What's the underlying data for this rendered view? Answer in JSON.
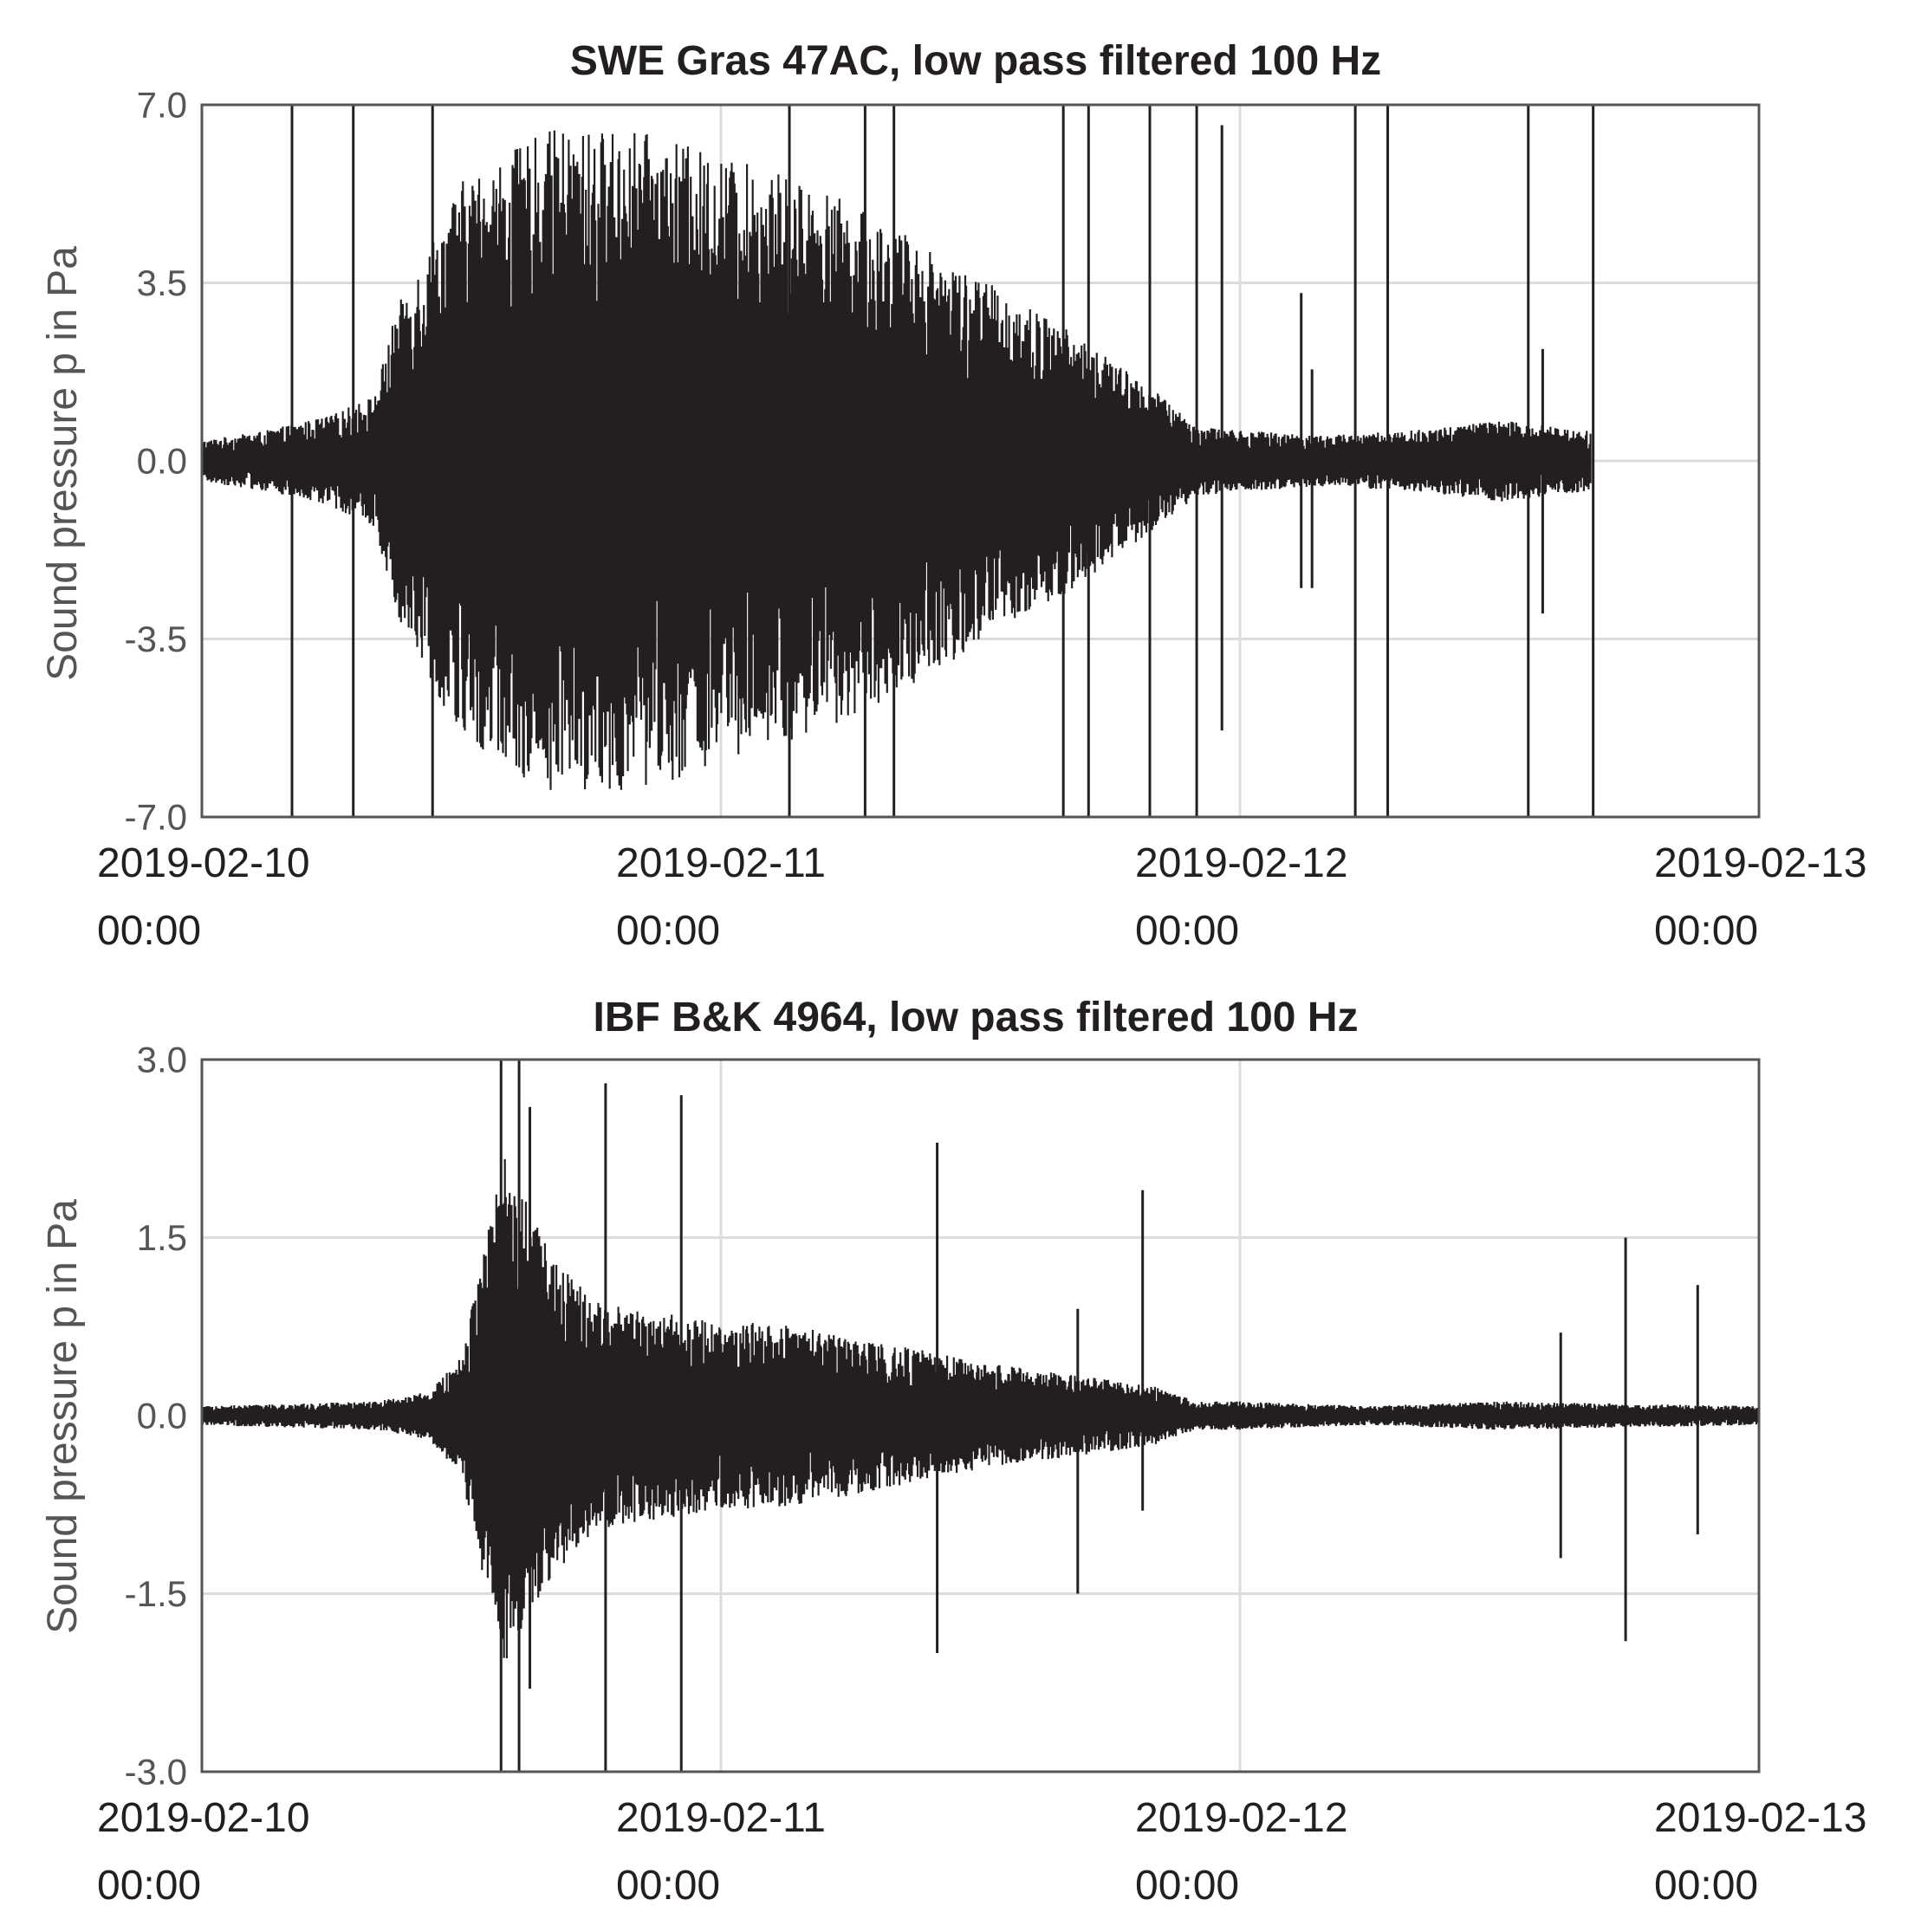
{
  "chart_data": [
    {
      "type": "line",
      "title": "SWE Gras 47AC, low pass filtered 100 Hz",
      "ylabel": "Sound pressure p in Pa",
      "xlabel": "",
      "xlim": [
        "2019-02-10 00:00",
        "2019-02-13 00:00"
      ],
      "ylim": [
        -7.0,
        7.0
      ],
      "yticks": [
        "7.0",
        "3.5",
        "0.0",
        "-3.5",
        "-7.0"
      ],
      "xticks": [
        {
          "date": "2019-02-10",
          "time": "00:00"
        },
        {
          "date": "2019-02-11",
          "time": "00:00"
        },
        {
          "date": "2019-02-12",
          "time": "00:00"
        },
        {
          "date": "2019-02-13",
          "time": "00:00"
        }
      ],
      "grid": true,
      "legend": "none",
      "color": "#231f20",
      "data_end": "2019-02-12 16:15",
      "envelope": {
        "description": "absolute amplitude envelope of the pressure time series",
        "time": [
          "2019-02-10 00:00",
          "2019-02-10 03:00",
          "2019-02-10 06:00",
          "2019-02-10 08:00",
          "2019-02-10 09:00",
          "2019-02-10 12:00",
          "2019-02-10 16:00",
          "2019-02-10 20:00",
          "2019-02-11 00:00",
          "2019-02-11 04:00",
          "2019-02-11 08:00",
          "2019-02-11 12:00",
          "2019-02-11 16:00",
          "2019-02-11 20:00",
          "2019-02-11 22:00",
          "2019-02-12 00:00",
          "2019-02-12 04:00",
          "2019-02-12 08:00",
          "2019-02-12 12:00",
          "2019-02-12 16:15"
        ],
        "amplitude": [
          0.4,
          0.6,
          0.9,
          1.3,
          3.0,
          5.5,
          6.5,
          6.5,
          6.0,
          5.5,
          4.6,
          3.6,
          2.6,
          1.4,
          0.7,
          0.6,
          0.5,
          0.6,
          0.8,
          0.6
        ]
      },
      "spikes": [
        {
          "time": "2019-02-10 04:10",
          "min": -7.0,
          "max": 7.0
        },
        {
          "time": "2019-02-10 07:00",
          "min": -7.0,
          "max": 7.0
        },
        {
          "time": "2019-02-10 10:40",
          "min": -7.0,
          "max": 7.0
        },
        {
          "time": "2019-02-11 03:10",
          "min": -7.0,
          "max": 7.0
        },
        {
          "time": "2019-02-11 06:40",
          "min": -7.0,
          "max": 7.0
        },
        {
          "time": "2019-02-11 08:00",
          "min": -7.0,
          "max": 7.0
        },
        {
          "time": "2019-02-11 15:50",
          "min": -7.0,
          "max": 7.0
        },
        {
          "time": "2019-02-11 17:00",
          "min": -7.0,
          "max": 7.0
        },
        {
          "time": "2019-02-11 19:50",
          "min": -7.0,
          "max": 7.0
        },
        {
          "time": "2019-02-11 22:00",
          "min": -7.0,
          "max": 7.0
        },
        {
          "time": "2019-02-12 05:20",
          "min": -7.0,
          "max": 7.0
        },
        {
          "time": "2019-02-12 06:50",
          "min": -7.0,
          "max": 7.0
        },
        {
          "time": "2019-02-12 13:20",
          "min": -7.0,
          "max": 7.0
        },
        {
          "time": "2019-02-12 16:20",
          "min": -7.0,
          "max": 7.0
        },
        {
          "time": "2019-02-11 23:10",
          "min": -5.3,
          "max": 6.6
        },
        {
          "time": "2019-02-12 14:00",
          "min": -3.0,
          "max": 2.2
        },
        {
          "time": "2019-02-12 02:50",
          "min": -2.5,
          "max": 3.3
        },
        {
          "time": "2019-02-12 03:20",
          "min": -2.5,
          "max": 1.8
        }
      ]
    },
    {
      "type": "line",
      "title": "IBF B&K 4964, low pass filtered 100 Hz",
      "ylabel": "Sound pressure p in Pa",
      "xlabel": "",
      "xlim": [
        "2019-02-10 00:00",
        "2019-02-13 00:00"
      ],
      "ylim": [
        -3.0,
        3.0
      ],
      "yticks": [
        "3.0",
        "1.5",
        "0.0",
        "-1.5",
        "-3.0"
      ],
      "xticks": [
        {
          "date": "2019-02-10",
          "time": "00:00"
        },
        {
          "date": "2019-02-11",
          "time": "00:00"
        },
        {
          "date": "2019-02-12",
          "time": "00:00"
        },
        {
          "date": "2019-02-13",
          "time": "00:00"
        }
      ],
      "grid": true,
      "legend": "none",
      "color": "#231f20",
      "data_end": "2019-02-13 00:00",
      "envelope": {
        "description": "absolute amplitude envelope of the pressure time series",
        "time": [
          "2019-02-10 00:00",
          "2019-02-10 08:00",
          "2019-02-10 10:30",
          "2019-02-10 12:00",
          "2019-02-10 14:00",
          "2019-02-10 16:00",
          "2019-02-10 18:00",
          "2019-02-10 20:00",
          "2019-02-11 00:00",
          "2019-02-11 04:00",
          "2019-02-11 08:00",
          "2019-02-11 12:00",
          "2019-02-11 16:00",
          "2019-02-11 18:00",
          "2019-02-11 20:00",
          "2019-02-11 22:00",
          "2019-02-12 00:00",
          "2019-02-12 06:00",
          "2019-02-12 12:00",
          "2019-02-12 18:00",
          "2019-02-13 00:00"
        ],
        "amplitude": [
          0.08,
          0.12,
          0.2,
          0.5,
          2.2,
          1.4,
          1.0,
          0.9,
          0.8,
          0.75,
          0.6,
          0.45,
          0.35,
          0.3,
          0.25,
          0.12,
          0.12,
          0.08,
          0.12,
          0.1,
          0.08
        ]
      },
      "spikes": [
        {
          "time": "2019-02-10 13:50",
          "min": -3.0,
          "max": 3.0
        },
        {
          "time": "2019-02-10 14:40",
          "min": -3.0,
          "max": 3.0
        },
        {
          "time": "2019-02-10 15:10",
          "min": -2.3,
          "max": 2.6
        },
        {
          "time": "2019-02-10 18:40",
          "min": -3.0,
          "max": 2.8
        },
        {
          "time": "2019-02-10 22:10",
          "min": -3.0,
          "max": 2.7
        },
        {
          "time": "2019-02-11 10:00",
          "min": -2.0,
          "max": 2.3
        },
        {
          "time": "2019-02-11 16:30",
          "min": -1.5,
          "max": 0.9
        },
        {
          "time": "2019-02-11 19:30",
          "min": -0.8,
          "max": 1.9
        },
        {
          "time": "2019-02-12 14:50",
          "min": -1.2,
          "max": 0.7
        },
        {
          "time": "2019-02-12 17:50",
          "min": -1.9,
          "max": 1.5
        },
        {
          "time": "2019-02-12 21:10",
          "min": -1.0,
          "max": 1.1
        }
      ]
    }
  ]
}
